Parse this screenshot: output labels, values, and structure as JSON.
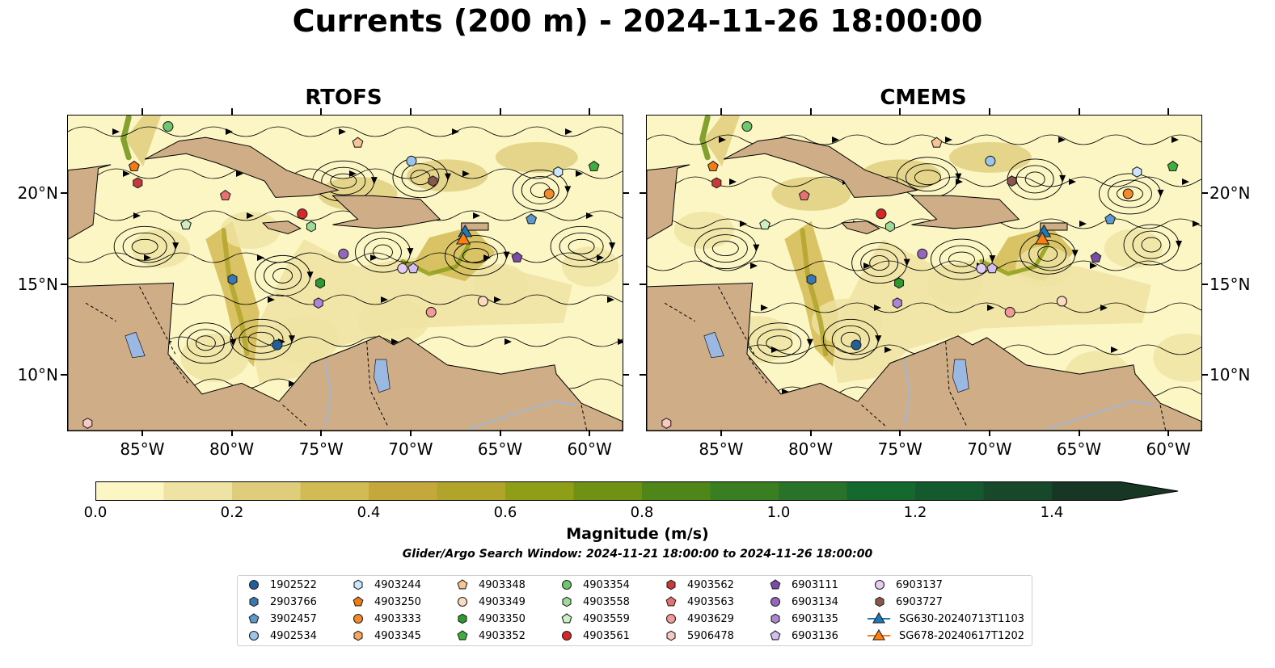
{
  "title": "Currents (200 m) - 2024-11-26 18:00:00",
  "panels": [
    {
      "title": "RTOFS"
    },
    {
      "title": "CMEMS"
    }
  ],
  "axes": {
    "x_ticks": [
      "85°W",
      "80°W",
      "75°W",
      "70°W",
      "65°W",
      "60°W"
    ],
    "y_ticks": [
      "20°N",
      "15°N",
      "10°N"
    ]
  },
  "colorbar": {
    "label": "Magnitude (m/s)",
    "ticks": [
      "0.0",
      "0.2",
      "0.4",
      "0.6",
      "0.8",
      "1.0",
      "1.2",
      "1.4"
    ],
    "min": 0.0,
    "max": 1.5,
    "colors": [
      "#fbf6c4",
      "#efe3a3",
      "#e0cd7c",
      "#d2ba55",
      "#c4a83c",
      "#b0a42a",
      "#8f9e17",
      "#6f9114",
      "#4f861a",
      "#3a7e22",
      "#287229",
      "#15682e",
      "#155a2e",
      "#18482a",
      "#173624"
    ]
  },
  "search_window": "Glider/Argo Search Window: 2024-11-21 18:00:00 to 2024-11-26 18:00:00",
  "legend": [
    {
      "label": "1902522",
      "marker": "circle",
      "color": "#1f5f9a"
    },
    {
      "label": "2903766",
      "marker": "hexagon",
      "color": "#3a78b4"
    },
    {
      "label": "3902457",
      "marker": "pentagon",
      "color": "#5a9ad0"
    },
    {
      "label": "4902534",
      "marker": "circle",
      "color": "#9cc4e8"
    },
    {
      "label": "4903244",
      "marker": "hexagon",
      "color": "#cce6fb"
    },
    {
      "label": "4903250",
      "marker": "pentagon",
      "color": "#f27b12"
    },
    {
      "label": "4903333",
      "marker": "circle",
      "color": "#f58a2a"
    },
    {
      "label": "4903345",
      "marker": "hexagon",
      "color": "#f7a85e"
    },
    {
      "label": "4903348",
      "marker": "pentagon",
      "color": "#f7c493"
    },
    {
      "label": "4903349",
      "marker": "circle",
      "color": "#fbdcbf"
    },
    {
      "label": "4903350",
      "marker": "hexagon",
      "color": "#2c9a2c"
    },
    {
      "label": "4903352",
      "marker": "pentagon",
      "color": "#3fae3f"
    },
    {
      "label": "4903354",
      "marker": "circle",
      "color": "#6ec76e"
    },
    {
      "label": "4903558",
      "marker": "hexagon",
      "color": "#9edc95"
    },
    {
      "label": "4903559",
      "marker": "pentagon",
      "color": "#cdf0c3"
    },
    {
      "label": "4903561",
      "marker": "circle",
      "color": "#d62728"
    },
    {
      "label": "4903562",
      "marker": "hexagon",
      "color": "#c83a3a"
    },
    {
      "label": "4903563",
      "marker": "pentagon",
      "color": "#e8716e"
    },
    {
      "label": "4903629",
      "marker": "circle",
      "color": "#f29a98"
    },
    {
      "label": "5906478",
      "marker": "hexagon",
      "color": "#fbc7c4"
    },
    {
      "label": "6903111",
      "marker": "pentagon",
      "color": "#7b4ba8"
    },
    {
      "label": "6903134",
      "marker": "circle",
      "color": "#9467bd"
    },
    {
      "label": "6903135",
      "marker": "hexagon",
      "color": "#ad86d2"
    },
    {
      "label": "6903136",
      "marker": "pentagon",
      "color": "#d4bdf0"
    },
    {
      "label": "6903137",
      "marker": "circle",
      "color": "#e3cdf7"
    },
    {
      "label": "6903727",
      "marker": "hexagon",
      "color": "#8c564b"
    },
    {
      "label": "SG630-20240713T1103",
      "marker": "triangle-line",
      "color": "#1f77b4"
    },
    {
      "label": "SG678-20240617T1202",
      "marker": "triangle-line",
      "color": "#ff7f0e"
    }
  ],
  "floats": [
    {
      "id": "1902522",
      "lon": -77.5,
      "lat": 11.7
    },
    {
      "id": "2903766",
      "lon": -80.0,
      "lat": 15.3
    },
    {
      "id": "3902457",
      "lon": -63.3,
      "lat": 18.6
    },
    {
      "id": "4902534",
      "lon": -70.0,
      "lat": 21.8
    },
    {
      "id": "4903244",
      "lon": -61.8,
      "lat": 21.2
    },
    {
      "id": "4903250",
      "lon": -85.5,
      "lat": 21.5
    },
    {
      "id": "4903333",
      "lon": -62.3,
      "lat": 20.0
    },
    {
      "id": "4903348",
      "lon": -73.0,
      "lat": 22.8
    },
    {
      "id": "4903349",
      "lon": -66.0,
      "lat": 14.1
    },
    {
      "id": "4903350",
      "lon": -75.1,
      "lat": 15.1
    },
    {
      "id": "4903352",
      "lon": -59.8,
      "lat": 21.5
    },
    {
      "id": "4903354",
      "lon": -83.6,
      "lat": 23.7
    },
    {
      "id": "4903558",
      "lon": -75.6,
      "lat": 18.2
    },
    {
      "id": "4903559",
      "lon": -82.6,
      "lat": 18.3
    },
    {
      "id": "4903561",
      "lon": -76.1,
      "lat": 18.9
    },
    {
      "id": "4903562",
      "lon": -85.3,
      "lat": 20.6
    },
    {
      "id": "4903563",
      "lon": -80.4,
      "lat": 19.9
    },
    {
      "id": "4903629",
      "lon": -68.9,
      "lat": 13.5
    },
    {
      "id": "5906478",
      "lon": -88.1,
      "lat": 7.4
    },
    {
      "id": "6903111",
      "lon": -64.1,
      "lat": 16.5
    },
    {
      "id": "6903134",
      "lon": -73.8,
      "lat": 16.7
    },
    {
      "id": "6903135",
      "lon": -75.2,
      "lat": 14.0
    },
    {
      "id": "6903136",
      "lon": -69.9,
      "lat": 15.9
    },
    {
      "id": "6903137",
      "lon": -70.5,
      "lat": 15.9
    },
    {
      "id": "6903727",
      "lon": -68.8,
      "lat": 20.7
    }
  ],
  "gliders": [
    {
      "id": "SG630-20240713T1103",
      "lon": -67.0,
      "lat": 17.9
    },
    {
      "id": "SG678-20240617T1202",
      "lon": -67.1,
      "lat": 17.5
    }
  ]
}
